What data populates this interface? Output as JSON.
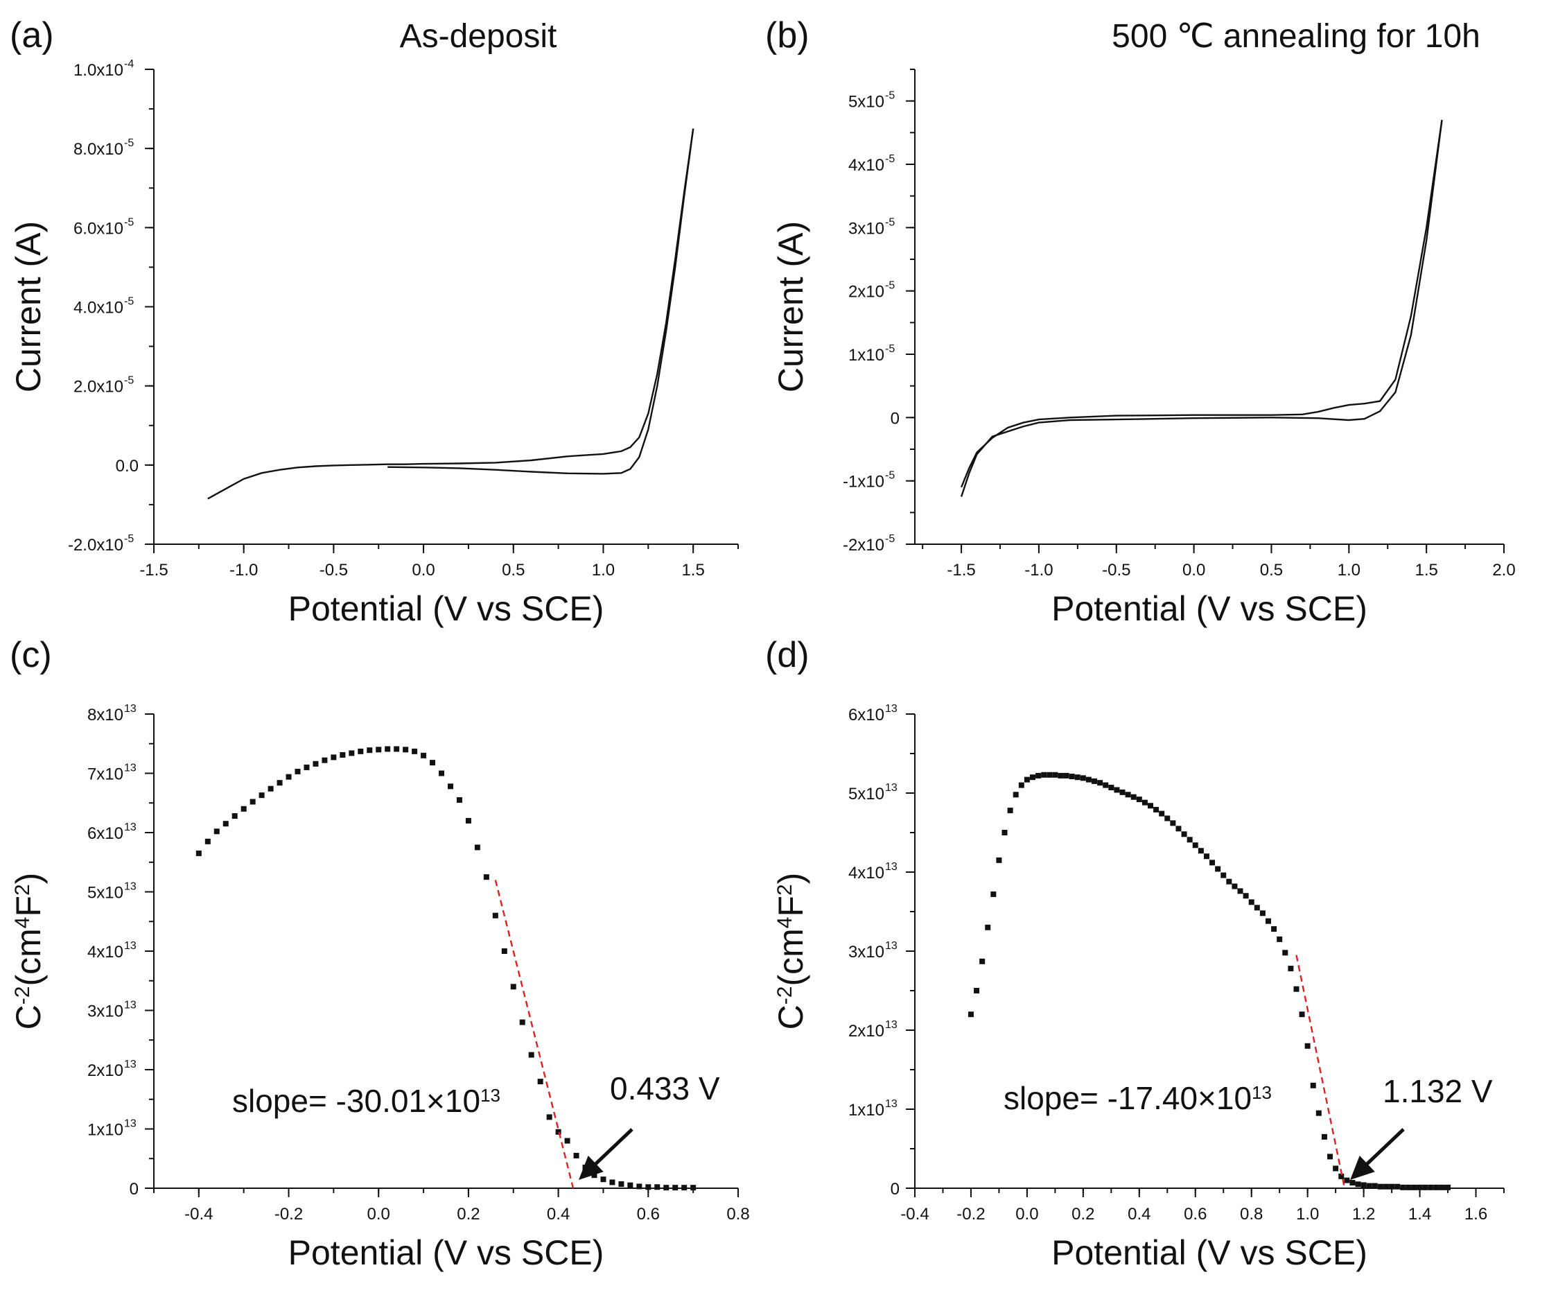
{
  "chart_data": [
    {
      "type": "line",
      "panel_label": "(a)",
      "title": "As-deposit",
      "xlabel": "Potential (V vs SCE)",
      "ylabel": "Current (A)",
      "xlim": [
        -1.5,
        1.75
      ],
      "ylim": [
        -2e-05,
        0.0001
      ],
      "xticks": [
        -1.5,
        -1.0,
        -0.5,
        0.0,
        0.5,
        1.0,
        1.5
      ],
      "xtick_labels": [
        "-1.5",
        "-1.0",
        "-0.5",
        "0.0",
        "0.5",
        "1.0",
        "1.5"
      ],
      "yticks": [
        -2e-05,
        0,
        2e-05,
        4e-05,
        6e-05,
        8e-05,
        0.0001
      ],
      "ytick_mantissas": [
        "-2.0x10",
        "0.0",
        "2.0x10",
        "4.0x10",
        "6.0x10",
        "8.0x10",
        "1.0x10"
      ],
      "ytick_exponents": [
        "-5",
        "",
        "-5",
        "-5",
        "-5",
        "-5",
        "-4"
      ],
      "series": [
        {
          "x": [
            -1.2,
            -1.1,
            -1.0,
            -0.9,
            -0.8,
            -0.7,
            -0.6,
            -0.5,
            -0.4,
            -0.3,
            -0.2,
            -0.1,
            0.0,
            0.2,
            0.4,
            0.6,
            0.8,
            0.9,
            1.0,
            1.1,
            1.15,
            1.2,
            1.25,
            1.3,
            1.35,
            1.4,
            1.45,
            1.5
          ],
          "y": [
            -8.5e-06,
            -6e-06,
            -3.5e-06,
            -2e-06,
            -1.2e-06,
            -6e-07,
            -3e-07,
            -1e-07,
            0.0,
            1e-07,
            2e-07,
            2e-07,
            3e-07,
            4e-07,
            6e-07,
            1.2e-06,
            2.2e-06,
            2.5e-06,
            2.8e-06,
            3.5e-06,
            4.5e-06,
            7e-06,
            1.3e-05,
            2.3e-05,
            3.6e-05,
            5.2e-05,
            6.9e-05,
            8.5e-05
          ]
        },
        {
          "x": [
            -0.2,
            0.0,
            0.2,
            0.4,
            0.6,
            0.8,
            1.0,
            1.1,
            1.15,
            1.2,
            1.25,
            1.3,
            1.35,
            1.4,
            1.45,
            1.5
          ],
          "y": [
            -5e-07,
            -6e-07,
            -8e-07,
            -1.2e-06,
            -1.7e-06,
            -2.1e-06,
            -2.2e-06,
            -2e-06,
            -1e-06,
            2e-06,
            9e-06,
            2e-05,
            3.4e-05,
            5e-05,
            6.8e-05,
            8.5e-05
          ]
        }
      ]
    },
    {
      "type": "line",
      "panel_label": "(b)",
      "title": "500 ℃ annealing for 10h",
      "xlabel": "Potential (V vs SCE)",
      "ylabel": "Current (A)",
      "xlim": [
        -1.8,
        2.0
      ],
      "ylim": [
        -2e-05,
        5.5e-05
      ],
      "xticks": [
        -1.5,
        -1.0,
        -0.5,
        0.0,
        0.5,
        1.0,
        1.5,
        2.0
      ],
      "xtick_labels": [
        "-1.5",
        "-1.0",
        "-0.5",
        "0.0",
        "0.5",
        "1.0",
        "1.5",
        "2.0"
      ],
      "yticks": [
        -2e-05,
        -1e-05,
        0,
        1e-05,
        2e-05,
        3e-05,
        4e-05,
        5e-05
      ],
      "ytick_mantissas": [
        "-2x10",
        "-1x10",
        "0",
        "1x10",
        "2x10",
        "3x10",
        "4x10",
        "5x10"
      ],
      "ytick_exponents": [
        "-5",
        "-5",
        "",
        "-5",
        "-5",
        "-5",
        "-5",
        "-5"
      ],
      "series": [
        {
          "x": [
            -1.5,
            -1.45,
            -1.4,
            -1.3,
            -1.2,
            -1.1,
            -1.0,
            -0.8,
            -0.5,
            0.0,
            0.5,
            0.7,
            0.8,
            0.9,
            1.0,
            1.1,
            1.2,
            1.3,
            1.4,
            1.5,
            1.6
          ],
          "y": [
            -1.1e-05,
            -8e-06,
            -5.5e-06,
            -3.2e-06,
            -1.6e-06,
            -8e-07,
            -3e-07,
            0.0,
            3e-07,
            4e-07,
            4e-07,
            5e-07,
            9e-07,
            1.5e-06,
            2e-06,
            2.2e-06,
            2.6e-06,
            6e-06,
            1.6e-05,
            3e-05,
            4.7e-05
          ]
        },
        {
          "x": [
            -1.5,
            -1.45,
            -1.4,
            -1.3,
            -1.2,
            -1.1,
            -1.0,
            -0.8,
            -0.5,
            0.0,
            0.5,
            0.8,
            1.0,
            1.1,
            1.2,
            1.3,
            1.4,
            1.5,
            1.6
          ],
          "y": [
            -1.25e-05,
            -8.8e-06,
            -5.8e-06,
            -3e-06,
            -2.2e-06,
            -1.4e-06,
            -8e-07,
            -4e-07,
            -3e-07,
            -1e-07,
            0.0,
            -1e-07,
            -4e-07,
            -2e-07,
            1e-06,
            4e-06,
            1.3e-05,
            2.8e-05,
            4.7e-05
          ]
        }
      ]
    },
    {
      "type": "scatter",
      "panel_label": "(c)",
      "xlabel": "Potential (V vs SCE)",
      "ylabel_main": "C",
      "ylabel_sup1": "-2",
      "ylabel_mid": "(cm",
      "ylabel_sup2": "4",
      "ylabel_end": "F",
      "ylabel_sup3": "2",
      "ylabel_close": ")",
      "xlim": [
        -0.5,
        0.8
      ],
      "ylim": [
        0,
        80000000000000.0
      ],
      "xticks": [
        -0.4,
        -0.2,
        0.0,
        0.2,
        0.4,
        0.6,
        0.8
      ],
      "xtick_labels": [
        "-0.4",
        "-0.2",
        "0.0",
        "0.2",
        "0.4",
        "0.6",
        "0.8"
      ],
      "yticks": [
        0,
        10000000000000.0,
        20000000000000.0,
        30000000000000.0,
        40000000000000.0,
        50000000000000.0,
        60000000000000.0,
        70000000000000.0,
        80000000000000.0
      ],
      "ytick_mantissas": [
        "0",
        "1x10",
        "2x10",
        "3x10",
        "4x10",
        "5x10",
        "6x10",
        "7x10",
        "8x10"
      ],
      "ytick_exponents": [
        "",
        "13",
        "13",
        "13",
        "13",
        "13",
        "13",
        "13",
        "13"
      ],
      "series": [
        {
          "x": [
            -0.4,
            -0.38,
            -0.36,
            -0.34,
            -0.32,
            -0.3,
            -0.28,
            -0.26,
            -0.24,
            -0.22,
            -0.2,
            -0.18,
            -0.16,
            -0.14,
            -0.12,
            -0.1,
            -0.08,
            -0.06,
            -0.04,
            -0.02,
            0.0,
            0.02,
            0.04,
            0.06,
            0.08,
            0.1,
            0.12,
            0.14,
            0.16,
            0.18,
            0.2,
            0.22,
            0.24,
            0.26,
            0.28,
            0.3,
            0.32,
            0.34,
            0.36,
            0.38,
            0.4,
            0.42,
            0.44,
            0.46,
            0.48,
            0.5,
            0.52,
            0.54,
            0.56,
            0.58,
            0.6,
            0.62,
            0.64,
            0.66,
            0.68,
            0.7
          ],
          "y": [
            56500000000000.0,
            58500000000000.0,
            60200000000000.0,
            61500000000000.0,
            62800000000000.0,
            64000000000000.0,
            65200000000000.0,
            66300000000000.0,
            67400000000000.0,
            68400000000000.0,
            69400000000000.0,
            70300000000000.0,
            71000000000000.0,
            71600000000000.0,
            72200000000000.0,
            72700000000000.0,
            73100000000000.0,
            73400000000000.0,
            73700000000000.0,
            73900000000000.0,
            74000000000000.0,
            74100000000000.0,
            74100000000000.0,
            74000000000000.0,
            73700000000000.0,
            73000000000000.0,
            71800000000000.0,
            70000000000000.0,
            67800000000000.0,
            65500000000000.0,
            62000000000000.0,
            57500000000000.0,
            52500000000000.0,
            46000000000000.0,
            40000000000000.0,
            34000000000000.0,
            28000000000000.0,
            22500000000000.0,
            18000000000000.0,
            12000000000000.0,
            9500000000000.0,
            8000000000000.0,
            5500000000000.0,
            3500000000000.0,
            2200000000000.0,
            1500000000000.0,
            1000000000000.0,
            700000000000.0,
            500000000000.0,
            300000000000.0,
            200000000000.0,
            200000000000.0,
            100000000000.0,
            100000000000.0,
            100000000000.0,
            100000000000.0
          ]
        }
      ],
      "fit_line": {
        "x": [
          0.26,
          0.433
        ],
        "y": [
          52000000000000.0,
          0
        ]
      },
      "annotations": {
        "slope_prefix": "slope= -30.01×10",
        "slope_exponent": "13",
        "intercept_label": "0.433 V",
        "intercept_x": 0.433
      }
    },
    {
      "type": "scatter",
      "panel_label": "(d)",
      "xlabel": "Potential (V vs SCE)",
      "ylabel_main": "C",
      "ylabel_sup1": "-2",
      "ylabel_mid": "(cm",
      "ylabel_sup2": "4",
      "ylabel_end": "F",
      "ylabel_sup3": "2",
      "ylabel_close": ")",
      "xlim": [
        -0.4,
        1.7
      ],
      "ylim": [
        0,
        60000000000000.0
      ],
      "xticks": [
        -0.4,
        -0.2,
        0.0,
        0.2,
        0.4,
        0.6,
        0.8,
        1.0,
        1.2,
        1.4,
        1.6
      ],
      "xtick_labels": [
        "-0.4",
        "-0.2",
        "0.0",
        "0.2",
        "0.4",
        "0.6",
        "0.8",
        "1.0",
        "1.2",
        "1.4",
        "1.6"
      ],
      "yticks": [
        0,
        10000000000000.0,
        20000000000000.0,
        30000000000000.0,
        40000000000000.0,
        50000000000000.0,
        60000000000000.0
      ],
      "ytick_mantissas": [
        "0",
        "1x10",
        "2x10",
        "3x10",
        "4x10",
        "5x10",
        "6x10"
      ],
      "ytick_exponents": [
        "",
        "13",
        "13",
        "13",
        "13",
        "13",
        "13"
      ],
      "series": [
        {
          "x": [
            -0.2,
            -0.18,
            -0.16,
            -0.14,
            -0.12,
            -0.1,
            -0.08,
            -0.06,
            -0.04,
            -0.02,
            0.0,
            0.02,
            0.04,
            0.06,
            0.08,
            0.1,
            0.12,
            0.14,
            0.16,
            0.18,
            0.2,
            0.22,
            0.24,
            0.26,
            0.28,
            0.3,
            0.32,
            0.34,
            0.36,
            0.38,
            0.4,
            0.42,
            0.44,
            0.46,
            0.48,
            0.5,
            0.52,
            0.54,
            0.56,
            0.58,
            0.6,
            0.62,
            0.64,
            0.66,
            0.68,
            0.7,
            0.72,
            0.74,
            0.76,
            0.78,
            0.8,
            0.82,
            0.84,
            0.86,
            0.88,
            0.9,
            0.92,
            0.94,
            0.96,
            0.98,
            1.0,
            1.02,
            1.04,
            1.06,
            1.08,
            1.1,
            1.12,
            1.14,
            1.16,
            1.18,
            1.2,
            1.22,
            1.24,
            1.26,
            1.28,
            1.3,
            1.32,
            1.34,
            1.36,
            1.38,
            1.4,
            1.42,
            1.44,
            1.46,
            1.48,
            1.5
          ],
          "y": [
            22000000000000.0,
            25000000000000.0,
            28700000000000.0,
            33000000000000.0,
            37200000000000.0,
            41500000000000.0,
            45000000000000.0,
            47800000000000.0,
            49800000000000.0,
            51000000000000.0,
            51700000000000.0,
            52000000000000.0,
            52200000000000.0,
            52300000000000.0,
            52300000000000.0,
            52300000000000.0,
            52200000000000.0,
            52200000000000.0,
            52100000000000.0,
            52000000000000.0,
            51900000000000.0,
            51700000000000.0,
            51500000000000.0,
            51300000000000.0,
            51000000000000.0,
            50700000000000.0,
            50400000000000.0,
            50100000000000.0,
            49800000000000.0,
            49500000000000.0,
            49200000000000.0,
            48800000000000.0,
            48400000000000.0,
            47900000000000.0,
            47400000000000.0,
            46800000000000.0,
            46200000000000.0,
            45500000000000.0,
            44800000000000.0,
            44100000000000.0,
            43400000000000.0,
            42700000000000.0,
            42000000000000.0,
            41200000000000.0,
            40400000000000.0,
            39600000000000.0,
            38800000000000.0,
            38200000000000.0,
            37600000000000.0,
            37000000000000.0,
            36200000000000.0,
            35500000000000.0,
            34800000000000.0,
            33800000000000.0,
            32800000000000.0,
            31500000000000.0,
            29800000000000.0,
            27800000000000.0,
            25200000000000.0,
            22000000000000.0,
            18000000000000.0,
            13000000000000.0,
            9500000000000.0,
            6500000000000.0,
            4000000000000.0,
            2500000000000.0,
            1500000000000.0,
            1000000000000.0,
            700000000000.0,
            500000000000.0,
            400000000000.0,
            300000000000.0,
            300000000000.0,
            200000000000.0,
            200000000000.0,
            200000000000.0,
            200000000000.0,
            100000000000.0,
            100000000000.0,
            100000000000.0,
            100000000000.0,
            100000000000.0,
            100000000000.0,
            100000000000.0,
            100000000000.0,
            100000000000.0
          ]
        }
      ],
      "fit_line": {
        "x": [
          0.96,
          1.132
        ],
        "y": [
          29500000000000.0,
          0
        ]
      },
      "annotations": {
        "slope_prefix": "slope= -17.40×10",
        "slope_exponent": "13",
        "intercept_label": "1.132 V",
        "intercept_x": 1.132
      }
    }
  ]
}
